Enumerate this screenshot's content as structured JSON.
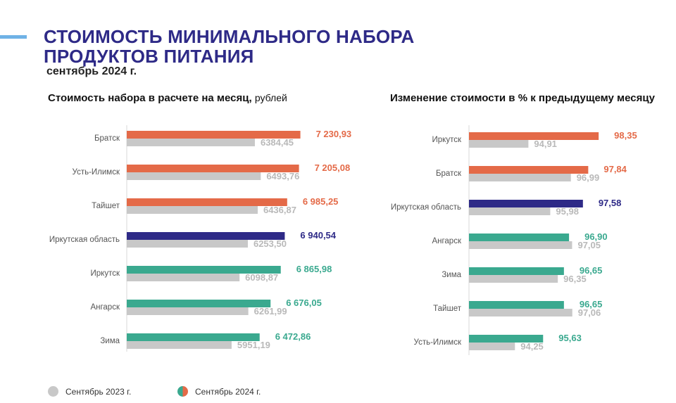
{
  "header": {
    "title_line1": "СТОИМОСТЬ МИНИМАЛЬНОГО НАБОРА",
    "title_line2": "ПРОДУКТОВ ПИТАНИЯ",
    "period": "сентябрь 2024 г."
  },
  "colors": {
    "title": "#2e2a87",
    "accent_bar": "#6fb2e6",
    "bar_high": "#e46a48",
    "bar_region": "#2e2a87",
    "bar_low": "#3aa98f",
    "bar_prev": "#c8c8c8"
  },
  "legend": {
    "prev_label": "Сентябрь 2023 г.",
    "cur_label": "Сентябрь 2024 г."
  },
  "chart_data": [
    {
      "type": "bar",
      "orientation": "horizontal",
      "title": "Стоимость набора в расчете на месяц,",
      "title_unit": "рублей",
      "xlim": [
        4000,
        7800
      ],
      "series": [
        {
          "name": "Сентябрь 2024 г.",
          "values": [
            7230.93,
            7205.08,
            6985.25,
            6940.54,
            6865.98,
            6676.05,
            6472.86
          ]
        },
        {
          "name": "Сентябрь 2023 г.",
          "values": [
            6384.45,
            6493.76,
            6436.87,
            6253.5,
            6098.87,
            6261.99,
            5951.19
          ]
        }
      ],
      "categories": [
        "Братск",
        "Усть-Илимск",
        "Тайшет",
        "Иркутская область",
        "Иркутск",
        "Ангарск",
        "Зима"
      ],
      "value_labels_cur": [
        "7 230,93",
        "7 205,08",
        "6 985,25",
        "6 940,54",
        "6 865,98",
        "6 676,05",
        "6 472,86"
      ],
      "value_labels_prev": [
        "6384,45",
        "6493,76",
        "6436,87",
        "6253,50",
        "6098,87",
        "6261,99",
        "5951,19"
      ],
      "color_groups": [
        "high",
        "high",
        "high",
        "region",
        "low",
        "low",
        "low"
      ]
    },
    {
      "type": "bar",
      "orientation": "horizontal",
      "title": "Изменение стоимости в % к предыдущему месяцу",
      "xlim": [
        92,
        100
      ],
      "series": [
        {
          "name": "Сентябрь 2024 г.",
          "values": [
            98.35,
            97.84,
            97.58,
            96.9,
            96.65,
            96.65,
            95.63
          ]
        },
        {
          "name": "Сентябрь 2023 г.",
          "values": [
            94.91,
            96.99,
            95.98,
            97.05,
            96.35,
            97.06,
            94.25
          ]
        }
      ],
      "categories": [
        "Иркутск",
        "Братск",
        "Иркутская область",
        "Ангарск",
        "Зима",
        "Тайшет",
        "Усть-Илимск"
      ],
      "value_labels_cur": [
        "98,35",
        "97,84",
        "97,58",
        "96,90",
        "96,65",
        "96,65",
        "95,63"
      ],
      "value_labels_prev": [
        "94,91",
        "96,99",
        "95,98",
        "97,05",
        "96,35",
        "97,06",
        "94,25"
      ],
      "color_groups": [
        "high",
        "high",
        "region",
        "low",
        "low",
        "low",
        "low"
      ]
    }
  ]
}
